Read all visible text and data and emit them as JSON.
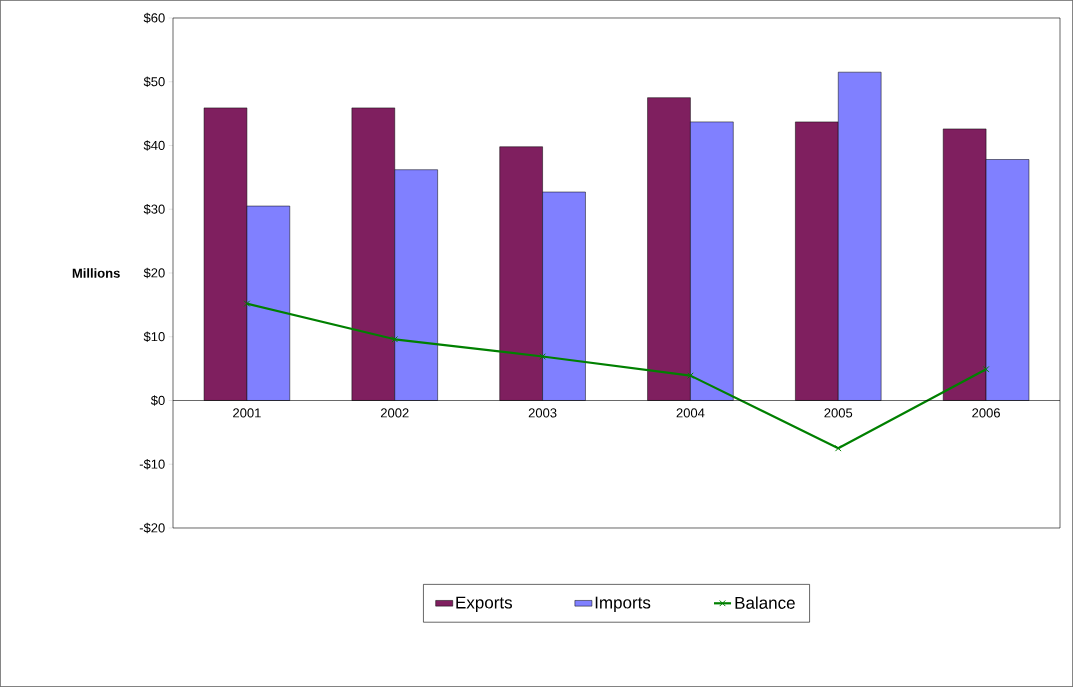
{
  "chart_data": {
    "type": "bar",
    "categories": [
      "2001",
      "2002",
      "2003",
      "2004",
      "2005",
      "2006"
    ],
    "series": [
      {
        "name": "Exports",
        "color": "#7f1f5f",
        "values": [
          45.9,
          45.9,
          39.8,
          47.5,
          43.7,
          42.6
        ]
      },
      {
        "name": "Imports",
        "color": "#8080ff",
        "values": [
          30.5,
          36.2,
          32.7,
          43.7,
          51.5,
          37.8
        ]
      },
      {
        "name": "Balance",
        "type": "line",
        "color": "#008000",
        "marker": "cross",
        "values": [
          15.2,
          9.6,
          6.9,
          3.9,
          -7.5,
          4.9
        ]
      }
    ],
    "ylabel": "Millions",
    "ylim": [
      -20,
      60
    ],
    "yticks": [
      {
        "value": -20,
        "label": "-$20"
      },
      {
        "value": -10,
        "label": "-$10"
      },
      {
        "value": 0,
        "label": "$0"
      },
      {
        "value": 10,
        "label": "$10"
      },
      {
        "value": 20,
        "label": "$20"
      },
      {
        "value": 30,
        "label": "$30"
      },
      {
        "value": 40,
        "label": "$40"
      },
      {
        "value": 50,
        "label": "$50"
      },
      {
        "value": 60,
        "label": "$60"
      }
    ],
    "legend": "bottom",
    "grid": false
  }
}
